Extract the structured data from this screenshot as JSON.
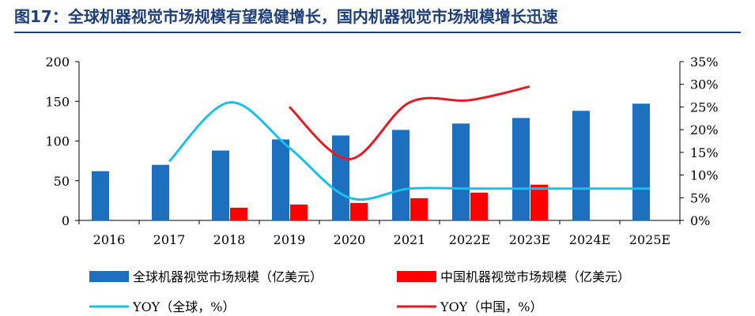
{
  "title": "图17：全球机器视觉市场规模有望稳健增长，国内机器视觉市场规模增长迅速",
  "colors": {
    "title": "#1f3f7a",
    "global_bar": "#1d6fbf",
    "china_bar": "#ff0000",
    "global_yoy": "#19c0ec",
    "china_yoy": "#e31b23"
  },
  "chart_data": {
    "type": "bar",
    "categories": [
      "2016",
      "2017",
      "2018",
      "2019",
      "2020",
      "2021",
      "2022E",
      "2023E",
      "2024E",
      "2025E"
    ],
    "series": [
      {
        "name": "全球机器视觉市场规模（亿美元）",
        "type": "bar",
        "axis": "left",
        "values": [
          62,
          70,
          88,
          102,
          107,
          114,
          122,
          129,
          138,
          147
        ]
      },
      {
        "name": "中国机器视觉市场规模（亿美元）",
        "type": "bar",
        "axis": "left",
        "values": [
          null,
          null,
          16,
          20,
          22,
          28,
          35,
          45,
          null,
          null
        ]
      },
      {
        "name": "YOY（全球，%）",
        "type": "line",
        "axis": "right",
        "values": [
          null,
          13,
          26,
          16,
          5,
          7,
          7,
          7,
          7,
          7
        ]
      },
      {
        "name": "YOY（中国，%）",
        "type": "line",
        "axis": "right",
        "values": [
          null,
          null,
          null,
          25,
          13.5,
          26,
          26.5,
          29.5,
          null,
          null
        ]
      }
    ],
    "ylim_left": [
      0,
      200
    ],
    "yticks_left": [
      "0",
      "50",
      "100",
      "150",
      "200"
    ],
    "ylim_right": [
      0,
      35
    ],
    "yticks_right": [
      "0%",
      "5%",
      "10%",
      "15%",
      "20%",
      "25%",
      "30%",
      "35%"
    ],
    "grid": false,
    "legend_position": "bottom"
  }
}
